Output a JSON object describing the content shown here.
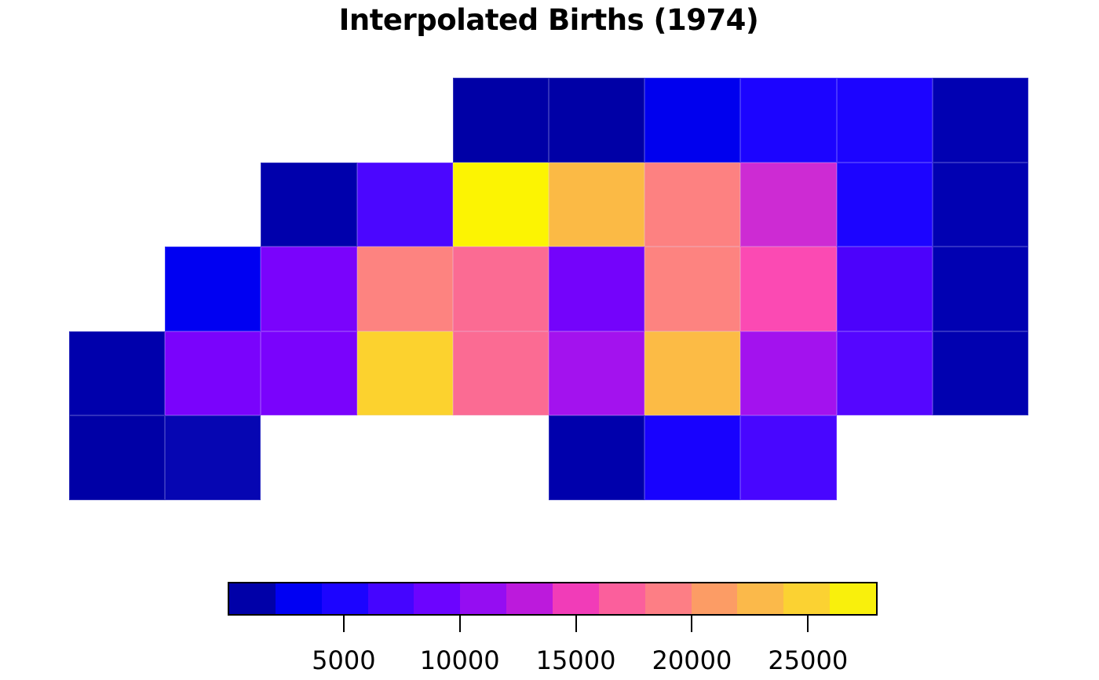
{
  "title": "Interpolated Births (1974)",
  "chart_data": {
    "type": "heatmap",
    "title": "Interpolated Births (1974)",
    "rows": 5,
    "cols": 10,
    "value_range": [
      0,
      28000
    ],
    "grid_lines": "faint",
    "legend_position": "bottom",
    "colorbar": {
      "segments": 14,
      "colors": [
        "#0000A8",
        "#0000F3",
        "#1C04FF",
        "#4505FF",
        "#6C04FF",
        "#950DF2",
        "#BC1ADC",
        "#F13CB8",
        "#FB5F9C",
        "#FD7E85",
        "#FC9C65",
        "#FBB94A",
        "#FBD232",
        "#F9F00C"
      ],
      "ticks": [
        5000,
        10000,
        15000,
        20000,
        25000
      ],
      "tick_labels": [
        "5000",
        "10000",
        "15000",
        "20000",
        "25000"
      ]
    },
    "cells": [
      {
        "row": 0,
        "col": 4,
        "value": 900,
        "color": "#0000A6"
      },
      {
        "row": 0,
        "col": 5,
        "value": 950,
        "color": "#0000A6"
      },
      {
        "row": 0,
        "col": 6,
        "value": 3400,
        "color": "#0000EE"
      },
      {
        "row": 0,
        "col": 7,
        "value": 5000,
        "color": "#1C04FF"
      },
      {
        "row": 0,
        "col": 8,
        "value": 5100,
        "color": "#1C04FF"
      },
      {
        "row": 0,
        "col": 9,
        "value": 1900,
        "color": "#0101B2"
      },
      {
        "row": 1,
        "col": 2,
        "value": 1400,
        "color": "#0000AC"
      },
      {
        "row": 1,
        "col": 3,
        "value": 7000,
        "color": "#4B06FF"
      },
      {
        "row": 1,
        "col": 4,
        "value": 27600,
        "color": "#FCF402"
      },
      {
        "row": 1,
        "col": 5,
        "value": 23200,
        "color": "#FBBA45"
      },
      {
        "row": 1,
        "col": 6,
        "value": 19000,
        "color": "#FD8181"
      },
      {
        "row": 1,
        "col": 7,
        "value": 13400,
        "color": "#CD2BD3"
      },
      {
        "row": 1,
        "col": 8,
        "value": 5000,
        "color": "#1C04FF"
      },
      {
        "row": 1,
        "col": 9,
        "value": 1900,
        "color": "#0101B2"
      },
      {
        "row": 2,
        "col": 1,
        "value": 3600,
        "color": "#0000F2"
      },
      {
        "row": 2,
        "col": 2,
        "value": 9200,
        "color": "#7A03FC"
      },
      {
        "row": 2,
        "col": 3,
        "value": 19000,
        "color": "#FD8380"
      },
      {
        "row": 2,
        "col": 4,
        "value": 17200,
        "color": "#FB6B93"
      },
      {
        "row": 2,
        "col": 5,
        "value": 9100,
        "color": "#7403FB"
      },
      {
        "row": 2,
        "col": 6,
        "value": 18900,
        "color": "#FD8380"
      },
      {
        "row": 2,
        "col": 7,
        "value": 15300,
        "color": "#FB4AB3"
      },
      {
        "row": 2,
        "col": 8,
        "value": 7000,
        "color": "#4C02FB"
      },
      {
        "row": 2,
        "col": 9,
        "value": 2000,
        "color": "#0101B2"
      },
      {
        "row": 3,
        "col": 0,
        "value": 1400,
        "color": "#0000AC"
      },
      {
        "row": 3,
        "col": 1,
        "value": 9300,
        "color": "#7A03FC"
      },
      {
        "row": 3,
        "col": 2,
        "value": 9200,
        "color": "#7A03FC"
      },
      {
        "row": 3,
        "col": 3,
        "value": 25100,
        "color": "#FCD22E"
      },
      {
        "row": 3,
        "col": 4,
        "value": 17300,
        "color": "#FB6B93"
      },
      {
        "row": 3,
        "col": 5,
        "value": 11600,
        "color": "#A312EE"
      },
      {
        "row": 3,
        "col": 6,
        "value": 23200,
        "color": "#FCBB45"
      },
      {
        "row": 3,
        "col": 7,
        "value": 11700,
        "color": "#A312EE"
      },
      {
        "row": 3,
        "col": 8,
        "value": 7800,
        "color": "#5506FF"
      },
      {
        "row": 3,
        "col": 9,
        "value": 1800,
        "color": "#0101B0"
      },
      {
        "row": 4,
        "col": 0,
        "value": 900,
        "color": "#0000A6"
      },
      {
        "row": 4,
        "col": 1,
        "value": 2000,
        "color": "#0606B2"
      },
      {
        "row": 4,
        "col": 5,
        "value": 1300,
        "color": "#0000AC"
      },
      {
        "row": 4,
        "col": 6,
        "value": 4800,
        "color": "#1802FE"
      },
      {
        "row": 4,
        "col": 7,
        "value": 6900,
        "color": "#4806FF"
      }
    ]
  }
}
